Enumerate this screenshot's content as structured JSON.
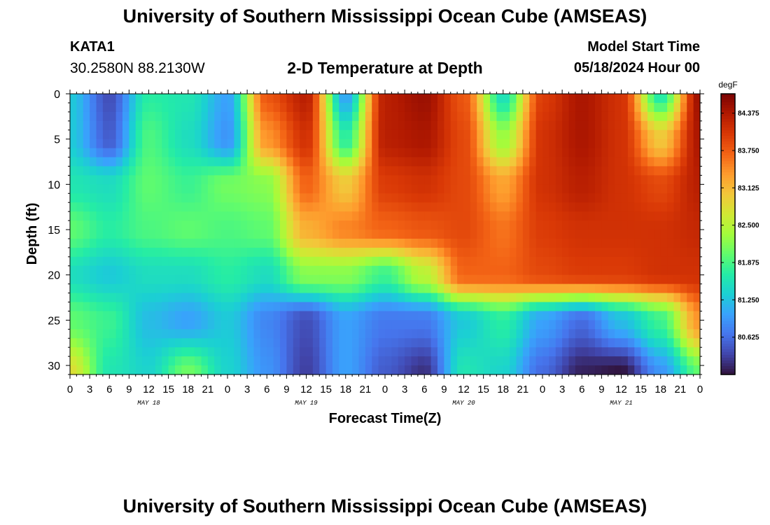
{
  "header": {
    "title": "University of Southern Mississippi Ocean Cube (AMSEAS)",
    "station": "KATA1",
    "coordinates": "30.2580N  88.2130W",
    "subtitle": "2-D Temperature at Depth",
    "model_start_label": "Model Start Time",
    "model_start_value": "05/18/2024 Hour 00"
  },
  "footer": {
    "title": "University of Southern Mississippi Ocean Cube (AMSEAS)"
  },
  "chart_data": {
    "type": "heatmap",
    "title": "2-D Temperature at Depth",
    "xlabel": "Forecast Time(Z)",
    "ylabel": "Depth (ft)",
    "x_range_hours": [
      0,
      96
    ],
    "y_range_ft": [
      0,
      31
    ],
    "x_tick_labels": [
      "0",
      "3",
      "6",
      "9",
      "12",
      "15",
      "18",
      "21",
      "0",
      "3",
      "6",
      "9",
      "12",
      "15",
      "18",
      "21",
      "0",
      "3",
      "6",
      "9",
      "12",
      "15",
      "18",
      "21",
      "0",
      "3",
      "6",
      "9",
      "12",
      "15",
      "18",
      "21",
      "0"
    ],
    "y_ticks": [
      0,
      5,
      10,
      15,
      20,
      25,
      30
    ],
    "date_labels": [
      {
        "label": "MAY 18",
        "hour": 12
      },
      {
        "label": "MAY 19",
        "hour": 36
      },
      {
        "label": "MAY 20",
        "hour": 60
      },
      {
        "label": "MAY 21",
        "hour": 84
      }
    ],
    "colorbar": {
      "unit": "degF",
      "min": 80.0,
      "max": 84.7,
      "tick_labels": [
        "84.375",
        "83.750",
        "83.125",
        "82.500",
        "81.875",
        "81.250",
        "80.625"
      ],
      "tick_values": [
        84.375,
        83.75,
        83.125,
        82.5,
        81.875,
        81.25,
        80.625
      ],
      "colors": [
        "#30123b",
        "#4145ab",
        "#4675ed",
        "#39a2fc",
        "#1bcfd4",
        "#24eca6",
        "#61fc6c",
        "#a4fc3b",
        "#d1e834",
        "#f3c63a",
        "#fe9b2d",
        "#f36315",
        "#d93806",
        "#b11901",
        "#7a0403"
      ]
    },
    "grid": {
      "x_hours": [
        0,
        6,
        12,
        18,
        24,
        30,
        36,
        42,
        48,
        54,
        60,
        66,
        72,
        78,
        84,
        90,
        96
      ],
      "depths_ft": [
        0,
        5,
        10,
        15,
        20,
        25,
        31
      ],
      "temps_degF": [
        [
          81.3,
          80.4,
          81.7,
          81.6,
          81.0,
          83.8,
          84.3,
          81.0,
          84.3,
          84.5,
          83.8,
          81.5,
          84.0,
          84.4,
          84.1,
          81.6,
          84.5
        ],
        [
          81.3,
          80.5,
          81.9,
          81.5,
          80.9,
          83.4,
          84.1,
          81.7,
          84.3,
          84.4,
          83.9,
          82.3,
          84.1,
          84.4,
          84.1,
          83.0,
          84.4
        ],
        [
          81.6,
          81.5,
          82.0,
          81.8,
          82.1,
          82.2,
          83.7,
          83.0,
          84.0,
          84.1,
          83.9,
          83.3,
          84.1,
          84.3,
          84.1,
          83.9,
          84.3
        ],
        [
          82.0,
          81.7,
          81.9,
          82.0,
          81.9,
          82.0,
          83.2,
          83.5,
          83.7,
          83.8,
          83.9,
          83.6,
          84.0,
          84.1,
          84.1,
          84.1,
          84.2
        ],
        [
          81.5,
          81.3,
          81.5,
          81.5,
          81.7,
          81.5,
          82.2,
          82.2,
          81.8,
          82.5,
          83.7,
          83.7,
          83.9,
          84.0,
          84.0,
          84.1,
          84.1
        ],
        [
          82.0,
          81.8,
          81.2,
          81.0,
          81.3,
          80.8,
          80.4,
          81.0,
          80.7,
          80.7,
          81.3,
          81.7,
          81.0,
          80.6,
          81.2,
          81.8,
          83.4
        ],
        [
          82.8,
          81.6,
          81.4,
          82.1,
          81.4,
          80.9,
          80.3,
          81.0,
          80.5,
          80.2,
          81.6,
          81.4,
          80.6,
          80.1,
          80.0,
          80.9,
          82.0
        ]
      ]
    }
  }
}
